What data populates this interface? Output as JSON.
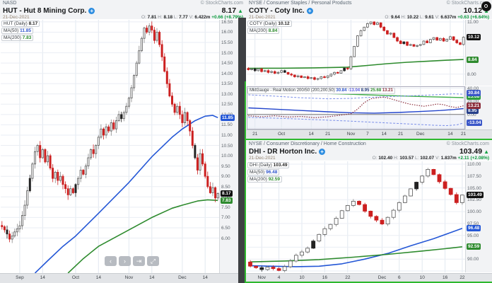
{
  "icons": {
    "info": "+",
    "up": "▲"
  },
  "nav": {
    "prev": "‹",
    "next": "›",
    "latest": "⇥",
    "resize": "⤢"
  },
  "hut": {
    "exchange": "NASD",
    "copyright": "© StockCharts.com",
    "title": "HUT - Hut 8 Mining Corp.",
    "last_price": "8.17",
    "date": "21-Dec-2021",
    "ohlc": {
      "o_label": "O:",
      "o": "7.81",
      "h_label": "H:",
      "h": "8.18",
      "l_label": "L:",
      "l": "7.77",
      "v_label": "V:",
      "v": "6.422m",
      "chg": "+0.66 (+8.79%)"
    },
    "legend": {
      "l1": {
        "label": "HUT (Daily)",
        "value": "8.17"
      },
      "l2": {
        "label": "MA(50)",
        "value": "11.85"
      },
      "l3": {
        "label": "MA(200)",
        "value": "7.83"
      }
    },
    "chart_data": {
      "type": "candlestick",
      "ylim": [
        4.3,
        16.6
      ],
      "yticks": {
        "from": 6.0,
        "to": 16.5,
        "step": 0.5
      },
      "closes": [
        6.55,
        6.4,
        6.2,
        5.95,
        6.1,
        6.3,
        6.45,
        6.6,
        7.1,
        7.6,
        8.3,
        8.9,
        9.6,
        10.2,
        10.5,
        9.9,
        10.3,
        9.7,
        10.0,
        9.4,
        8.9,
        9.2,
        8.8,
        9.0,
        8.6,
        8.4,
        8.1,
        8.4,
        8.2,
        8.6,
        8.9,
        9.3,
        9.1,
        9.5,
        9.9,
        10.3,
        10.1,
        10.5,
        10.9,
        11.3,
        11.0,
        11.4,
        11.2,
        11.6,
        11.3,
        11.7,
        12.0,
        11.8,
        12.1,
        12.4,
        12.8,
        13.3,
        13.9,
        14.5,
        15.1,
        15.7,
        16.2,
        16.0,
        16.3,
        16.1,
        15.6,
        16.0,
        15.4,
        14.8,
        14.1,
        13.5,
        12.9,
        12.5,
        12.1,
        12.4,
        12.0,
        11.6,
        12.1,
        11.7,
        11.2,
        10.5,
        9.9,
        9.3,
        10.1,
        9.6,
        9.0,
        8.5,
        8.2,
        8.45,
        7.95,
        8.17
      ],
      "xticks": [
        {
          "i": 7,
          "label": "Sep"
        },
        {
          "i": 16,
          "label": "14"
        },
        {
          "i": 29,
          "label": "Oct"
        },
        {
          "i": 38,
          "label": "14"
        },
        {
          "i": 50,
          "label": "Nov"
        },
        {
          "i": 59,
          "label": "14"
        },
        {
          "i": 71,
          "label": "Dec"
        },
        {
          "i": 80,
          "label": "14"
        }
      ],
      "mas": [
        {
          "name": "MA(50)",
          "color": "#2457d6",
          "pts": [
            [
              13,
              4.3
            ],
            [
              18,
              4.9
            ],
            [
              24,
              5.6
            ],
            [
              29,
              6.1
            ],
            [
              38,
              7.2
            ],
            [
              50,
              8.7
            ],
            [
              59,
              9.95
            ],
            [
              67,
              10.9
            ],
            [
              71,
              11.3
            ],
            [
              76,
              11.7
            ],
            [
              80,
              11.92
            ],
            [
              83,
              11.96
            ],
            [
              85,
              11.85
            ]
          ]
        },
        {
          "name": "MA(200)",
          "color": "#2e8b2e",
          "pts": [
            [
              26,
              4.3
            ],
            [
              32,
              5.0
            ],
            [
              38,
              5.6
            ],
            [
              50,
              6.4
            ],
            [
              59,
              7.0
            ],
            [
              67,
              7.45
            ],
            [
              71,
              7.6
            ],
            [
              77,
              7.8
            ],
            [
              81,
              7.86
            ],
            [
              85,
              7.83
            ]
          ]
        }
      ],
      "badges": [
        {
          "v": 11.85,
          "text": "11.85",
          "bg": "#2457d6"
        },
        {
          "v": 8.17,
          "text": "8.17",
          "bg": "#111111"
        },
        {
          "v": 7.83,
          "text": "7.83",
          "bg": "#2e8b2e"
        }
      ]
    }
  },
  "coty": {
    "exchange": "NYSE / Consumer Staples / Personal Products",
    "copyright": "© StockCharts.com",
    "title": "COTY - Coty Inc.",
    "last_price": "10.12",
    "date": "21-Dec-2021",
    "ohlc": {
      "o_label": "O:",
      "o": "9.64",
      "h_label": "H:",
      "h": "10.22",
      "l_label": "L:",
      "l": "9.61",
      "v_label": "V:",
      "v": "6.637m",
      "chg": "+0.63 (+6.64%)"
    },
    "legend": {
      "l1": {
        "label": "COTY (Daily)",
        "value": "10.12"
      },
      "l2": {
        "label": "MA(200)",
        "value": "8.84"
      }
    },
    "chart_data": {
      "type": "candlestick",
      "ylim": [
        7.34,
        11.12
      ],
      "yticks": {
        "list": [
          {
            "v": 11,
            "label": "11.00"
          },
          {
            "v": 10,
            "label": ""
          },
          {
            "v": 9,
            "label": ""
          },
          {
            "v": 8,
            "label": "8.00"
          }
        ]
      },
      "closes": [
        8.25,
        8.3,
        8.2,
        8.3,
        8.15,
        8.2,
        8.1,
        8.15,
        8.05,
        8.1,
        8.2,
        8.1,
        8.0,
        7.95,
        7.85,
        7.9,
        7.8,
        7.85,
        7.75,
        7.8,
        7.7,
        7.75,
        7.85,
        7.8,
        7.9,
        8.0,
        8.1,
        8.05,
        8.2,
        8.35,
        8.3,
        9.0,
        9.6,
        10.2,
        10.5,
        10.7,
        10.9,
        11.0,
        10.85,
        10.95,
        10.7,
        10.5,
        10.3,
        10.35,
        10.1,
        9.9,
        9.75,
        9.85,
        9.65,
        9.7,
        9.6,
        9.65,
        9.7,
        9.9,
        9.8,
        10.0,
        10.1,
        9.95,
        10.05,
        9.9,
        10.0,
        10.15,
        9.95,
        9.8,
        9.7,
        10.12
      ],
      "xticks": [
        {
          "i": 2,
          "label": "21"
        },
        {
          "i": 10,
          "label": "Oct"
        },
        {
          "i": 19,
          "label": "14"
        },
        {
          "i": 24,
          "label": "21"
        },
        {
          "i": 31,
          "label": "Nov"
        },
        {
          "i": 36,
          "label": "7"
        },
        {
          "i": 41,
          "label": "14"
        },
        {
          "i": 46,
          "label": "21"
        },
        {
          "i": 52,
          "label": "Dec"
        },
        {
          "i": 61,
          "label": "14"
        },
        {
          "i": 65,
          "label": "21"
        }
      ],
      "mas": [
        {
          "name": "MA(200)",
          "color": "#2e8b2e",
          "pts": [
            [
              0,
              8.33
            ],
            [
              10,
              8.34
            ],
            [
              20,
              8.36
            ],
            [
              30,
              8.4
            ],
            [
              36,
              8.5
            ],
            [
              42,
              8.6
            ],
            [
              48,
              8.68
            ],
            [
              54,
              8.74
            ],
            [
              60,
              8.8
            ],
            [
              65,
              8.84
            ]
          ]
        }
      ],
      "badges": [
        {
          "v": 10.12,
          "text": "10.12",
          "bg": "#111111"
        },
        {
          "v": 8.84,
          "text": "8.84",
          "bg": "#2e8b2e"
        }
      ]
    }
  },
  "ind": {
    "label": "MktGauge - Real Motion 200/50 (200,200,50)",
    "v1": "30.84",
    "v2": "-13.04",
    "v3": "8.95",
    "v4": "25.68",
    "v5": "13.21",
    "chart_data": {
      "type": "line",
      "ylim": [
        -23,
        43
      ],
      "yticks": {
        "list": [
          {
            "v": 40,
            "label": "40.00"
          },
          {
            "v": 20,
            "label": "20.00"
          },
          {
            "v": 0,
            "label": "0.00"
          },
          {
            "v": -20,
            "label": "-20.00"
          }
        ]
      },
      "n": 66,
      "zero_line": 0,
      "series": [
        {
          "name": "green-line",
          "style": "solid",
          "color": "#3fae49",
          "w": 1.4,
          "pts": [
            [
              0,
              35
            ],
            [
              15,
              33
            ],
            [
              30,
              31
            ],
            [
              45,
              28.5
            ],
            [
              55,
              27
            ],
            [
              65,
              25.68
            ]
          ],
          "badge": {
            "v": 27.5,
            "text": "25.68",
            "bg": "#2e9e3e"
          }
        },
        {
          "name": "dashed-upper",
          "style": "dashed",
          "color": "#7b8fe8",
          "w": 1,
          "pts": [
            [
              0,
              30
            ],
            [
              8,
              28
            ],
            [
              16,
              25.5
            ],
            [
              24,
              24
            ],
            [
              31,
              24.5
            ],
            [
              36,
              26
            ],
            [
              44,
              27.5
            ],
            [
              52,
              29
            ],
            [
              58,
              30.5
            ],
            [
              62,
              31.5
            ],
            [
              65,
              30.84
            ]
          ],
          "badge": {
            "v": 32.5,
            "text": "30.84",
            "bg": "#3a56c8"
          }
        },
        {
          "name": "solid-blue",
          "style": "solid",
          "color": "#2244cc",
          "w": 1.4,
          "pts": [
            [
              0,
              10
            ],
            [
              8,
              8
            ],
            [
              16,
              6
            ],
            [
              24,
              4
            ],
            [
              31,
              2.5
            ],
            [
              38,
              2
            ],
            [
              45,
              3
            ],
            [
              52,
              4.5
            ],
            [
              58,
              6
            ],
            [
              62,
              7.5
            ],
            [
              65,
              8.95
            ]
          ],
          "badge": {
            "v": 5.5,
            "text": "8.95",
            "bg": "#27408b"
          }
        },
        {
          "name": "dotted-maroon",
          "style": "dotted",
          "color": "#8b2e3c",
          "w": 1.2,
          "pts": [
            [
              0,
              -2
            ],
            [
              4,
              -3.5
            ],
            [
              8,
              -2
            ],
            [
              12,
              -4
            ],
            [
              16,
              -3
            ],
            [
              20,
              -5
            ],
            [
              24,
              -3.5
            ],
            [
              28,
              -1
            ],
            [
              31,
              1
            ],
            [
              33,
              8
            ],
            [
              35,
              18
            ],
            [
              37,
              24
            ],
            [
              39,
              25.5
            ],
            [
              41,
              26.5
            ],
            [
              43,
              24
            ],
            [
              45,
              21
            ],
            [
              47,
              18
            ],
            [
              49,
              15.5
            ],
            [
              51,
              14
            ],
            [
              53,
              12.5
            ],
            [
              55,
              14
            ],
            [
              57,
              16
            ],
            [
              59,
              15
            ],
            [
              61,
              12
            ],
            [
              63,
              10.5
            ],
            [
              65,
              13.21
            ]
          ],
          "badge": {
            "v": 13.21,
            "text": "13.21",
            "bg": "#8b2e3c"
          }
        },
        {
          "name": "dashed-lower",
          "style": "dashed",
          "color": "#7b8fe8",
          "w": 1,
          "pts": [
            [
              0,
              -4.5
            ],
            [
              10,
              -6
            ],
            [
              20,
              -8
            ],
            [
              30,
              -10
            ],
            [
              40,
              -12.5
            ],
            [
              50,
              -15
            ],
            [
              56,
              -16.5
            ],
            [
              60,
              -17
            ],
            [
              63,
              -16
            ],
            [
              65,
              -13.04
            ]
          ],
          "badge": {
            "v": -13.04,
            "text": "-13.04",
            "bg": "#3a56c8"
          }
        }
      ],
      "xticks": [
        {
          "i": 2,
          "label": "21"
        },
        {
          "i": 10,
          "label": "Oct"
        },
        {
          "i": 19,
          "label": "14"
        },
        {
          "i": 24,
          "label": "21"
        },
        {
          "i": 31,
          "label": "Nov"
        },
        {
          "i": 36,
          "label": "7"
        },
        {
          "i": 41,
          "label": "14"
        },
        {
          "i": 46,
          "label": "21"
        },
        {
          "i": 52,
          "label": "Dec"
        },
        {
          "i": 61,
          "label": "14"
        },
        {
          "i": 65,
          "label": "21"
        }
      ]
    }
  },
  "dhi": {
    "exchange": "NYSE / Consumer Discretionary / Home Construction",
    "copyright": "© StockCharts.com",
    "title": "DHI - DR Horton Inc.",
    "last_price": "103.49",
    "date": "21-Dec-2021",
    "ohlc": {
      "o_label": "O:",
      "o": "102.40",
      "h_label": "H:",
      "h": "103.57",
      "l_label": "L:",
      "l": "102.07",
      "v_label": "V:",
      "v": "1.837m",
      "chg": "+2.11 (+2.08%)"
    },
    "legend": {
      "l1": {
        "label": "DHI (Daily)",
        "value": "103.49"
      },
      "l2": {
        "label": "MA(50)",
        "value": "96.48"
      },
      "l3": {
        "label": "MA(200)",
        "value": "92.59"
      }
    },
    "chart_data": {
      "type": "candlestick",
      "ylim": [
        87.2,
        110.6
      ],
      "yticks": {
        "from": 87.5,
        "to": 110.0,
        "step": 2.5
      },
      "closes": [
        88.5,
        88.2,
        87.8,
        88.3,
        88.0,
        87.6,
        88.4,
        89.6,
        90.8,
        91.5,
        92.3,
        93.8,
        95.2,
        96.4,
        97.3,
        98.6,
        100.2,
        101.3,
        102.2,
        101.5,
        100.1,
        99.0,
        98.2,
        97.4,
        98.8,
        100.3,
        101.9,
        103.3,
        104.8,
        106.2,
        107.5,
        108.9,
        107.8,
        106.3,
        104.9,
        103.6,
        101.9,
        103.49
      ],
      "xticks": [
        {
          "i": 2,
          "label": "Nov"
        },
        {
          "i": 5,
          "label": "4"
        },
        {
          "i": 9,
          "label": "10"
        },
        {
          "i": 13,
          "label": "16"
        },
        {
          "i": 17,
          "label": "22"
        },
        {
          "i": 23,
          "label": "Dec"
        },
        {
          "i": 26,
          "label": "6"
        },
        {
          "i": 30,
          "label": "10"
        },
        {
          "i": 34,
          "label": "16"
        },
        {
          "i": 37,
          "label": "22"
        }
      ],
      "mas": [
        {
          "name": "MA(50)",
          "color": "#2457d6",
          "pts": [
            [
              0,
              88.6
            ],
            [
              4,
              88.5
            ],
            [
              8,
              88.4
            ],
            [
              12,
              88.5
            ],
            [
              16,
              89.0
            ],
            [
              20,
              90.0
            ],
            [
              24,
              91.2
            ],
            [
              28,
              92.8
            ],
            [
              32,
              94.3
            ],
            [
              35,
              95.6
            ],
            [
              37,
              96.48
            ]
          ]
        },
        {
          "name": "MA(200)",
          "color": "#2e8b2e",
          "pts": [
            [
              0,
              89.4
            ],
            [
              6,
              89.6
            ],
            [
              12,
              89.9
            ],
            [
              18,
              90.4
            ],
            [
              24,
              91.0
            ],
            [
              30,
              91.7
            ],
            [
              34,
              92.2
            ],
            [
              37,
              92.59
            ]
          ]
        }
      ],
      "badges": [
        {
          "v": 103.49,
          "text": "103.49",
          "bg": "#111111"
        },
        {
          "v": 96.48,
          "text": "96.48",
          "bg": "#2457d6"
        },
        {
          "v": 92.59,
          "text": "92.59",
          "bg": "#2e8b2e"
        }
      ]
    }
  }
}
